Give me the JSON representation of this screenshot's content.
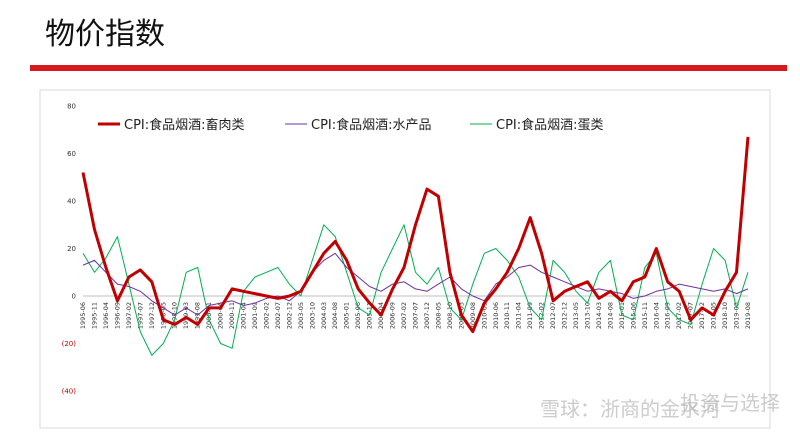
{
  "title": "物价指数",
  "watermark": [
    "雪球：浙商的金水河",
    "投资与选择"
  ],
  "chart_data": {
    "type": "line",
    "categories": [
      "1995-06",
      "1995-11",
      "1996-04",
      "1996-09",
      "1997-02",
      "1997-07",
      "1997-12",
      "1998-05",
      "1998-10",
      "1999-03",
      "1999-08",
      "2000-01",
      "2000-06",
      "2000-11",
      "2001-04",
      "2001-09",
      "2002-02",
      "2002-07",
      "2002-12",
      "2003-05",
      "2003-10",
      "2004-03",
      "2004-08",
      "2005-01",
      "2005-06",
      "2005-11",
      "2006-04",
      "2006-09",
      "2007-02",
      "2007-07",
      "2007-12",
      "2008-05",
      "2008-10",
      "2009-03",
      "2009-08",
      "2010-01",
      "2010-06",
      "2010-11",
      "2011-04",
      "2011-09",
      "2012-02",
      "2012-07",
      "2012-12",
      "2013-05",
      "2013-10",
      "2014-03",
      "2014-08",
      "2015-01",
      "2015-06",
      "2015-11",
      "2016-04",
      "2016-09",
      "2017-02",
      "2017-07",
      "2017-12",
      "2018-05",
      "2018-10",
      "2019-03",
      "2019-08"
    ],
    "series": [
      {
        "name": "CPI:食品烟酒:畜肉类",
        "color": "#c00000",
        "values": [
          52,
          28,
          12,
          -2,
          8,
          11,
          6,
          -10,
          -12,
          -9,
          -12,
          -5,
          -5,
          3,
          2,
          1,
          0,
          -1,
          0,
          2,
          10,
          18,
          23,
          15,
          3,
          -3,
          -8,
          3,
          12,
          30,
          45,
          42,
          10,
          -8,
          -15,
          -3,
          3,
          10,
          20,
          33,
          18,
          -2,
          2,
          4,
          6,
          -1,
          2,
          -2,
          6,
          8,
          20,
          6,
          2,
          -10,
          -5,
          -8,
          2,
          10,
          67
        ]
      },
      {
        "name": "CPI:食品烟酒:水产品",
        "color": "#7030a0",
        "values": [
          13,
          15,
          10,
          5,
          4,
          2,
          -2,
          -5,
          -8,
          -5,
          -8,
          -4,
          -3,
          -2,
          -4,
          -3,
          -1,
          0,
          -2,
          2,
          10,
          15,
          18,
          12,
          8,
          4,
          2,
          5,
          6,
          3,
          2,
          5,
          8,
          3,
          0,
          -2,
          5,
          8,
          12,
          13,
          10,
          8,
          6,
          4,
          2,
          3,
          2,
          1,
          -1,
          0,
          2,
          3,
          5,
          4,
          3,
          2,
          3,
          1,
          3
        ]
      },
      {
        "name": "CPI:食品烟酒:蛋类",
        "color": "#00b050",
        "values": [
          18,
          10,
          16,
          25,
          5,
          -15,
          -25,
          -20,
          -10,
          10,
          12,
          -10,
          -20,
          -22,
          2,
          8,
          10,
          12,
          5,
          0,
          15,
          30,
          25,
          10,
          -5,
          -8,
          10,
          20,
          30,
          10,
          5,
          12,
          -5,
          -10,
          5,
          18,
          20,
          15,
          8,
          -5,
          -10,
          15,
          10,
          2,
          -3,
          10,
          15,
          -8,
          -10,
          12,
          18,
          -5,
          -10,
          -12,
          5,
          20,
          15,
          -5,
          10
        ]
      }
    ],
    "ylim": [
      -40,
      80
    ],
    "yticks": [
      {
        "value": -40,
        "label": "(40)"
      },
      {
        "value": -20,
        "label": "(20)"
      },
      0,
      20,
      40,
      60,
      80
    ],
    "legend": "top"
  }
}
